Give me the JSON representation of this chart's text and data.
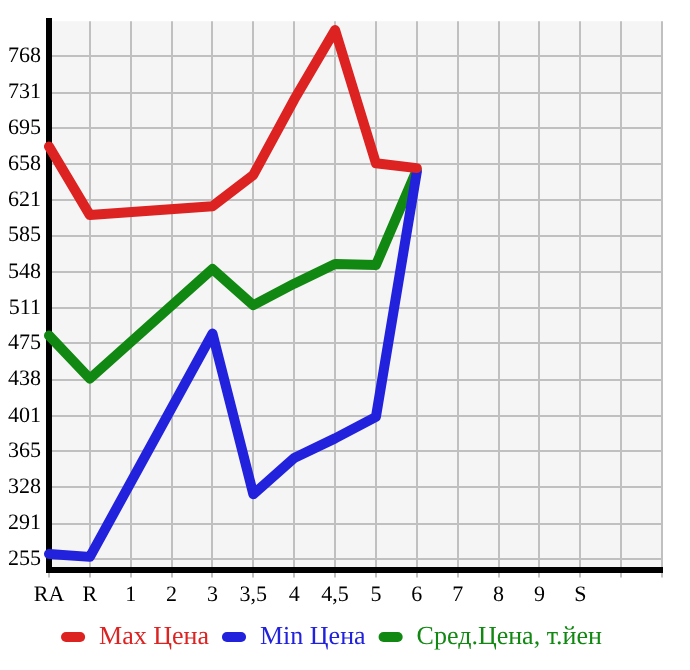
{
  "chart_data": {
    "type": "line",
    "categories": [
      "RA",
      "R",
      "1",
      "2",
      "3",
      "3,5",
      "4",
      "4,5",
      "5",
      "6",
      "7",
      "8",
      "9",
      "S",
      null,
      null
    ],
    "series": [
      {
        "name": "Max Цена",
        "color": "#dd2222",
        "values": [
          676,
          606,
          null,
          null,
          615,
          647,
          724,
          795,
          659,
          654,
          null,
          null,
          null,
          null,
          null,
          null
        ]
      },
      {
        "name": "Min Цена",
        "color": "#2222dd",
        "values": [
          260,
          257,
          null,
          null,
          485,
          321,
          358,
          378,
          400,
          650,
          null,
          null,
          null,
          null,
          null,
          null
        ]
      },
      {
        "name": "Сред.Цена, т.йен",
        "color": "#118811",
        "values": [
          483,
          439,
          null,
          null,
          551,
          514,
          536,
          556,
          555,
          652,
          null,
          null,
          null,
          null,
          null,
          null
        ]
      }
    ],
    "ylim": [
      244,
      804
    ],
    "yticks": [
      255,
      291,
      328,
      365,
      401,
      438,
      475,
      511,
      548,
      585,
      621,
      658,
      695,
      731,
      768
    ],
    "grid": true,
    "legend": "bottom",
    "marker": "none",
    "line_style": "solid"
  }
}
